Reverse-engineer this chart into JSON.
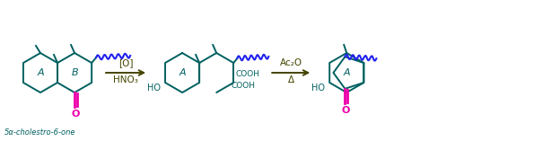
{
  "bg_color": "#ffffff",
  "teal": "#006060",
  "pink": "#ee00aa",
  "blue": "#2222ee",
  "arrow_color": "#444400",
  "label_a": "A",
  "label_b": "B",
  "subtitle": "5α-cholestro-6-one",
  "reaction1_top": "[O]",
  "reaction1_bot": "HNO₃",
  "reaction2_top": "Ac₂O",
  "reaction2_bot": "Δ",
  "cooh_label": "COOH",
  "ho_label": "HO",
  "o_label": "O",
  "figsize": [
    6.24,
    1.57
  ],
  "dpi": 100
}
